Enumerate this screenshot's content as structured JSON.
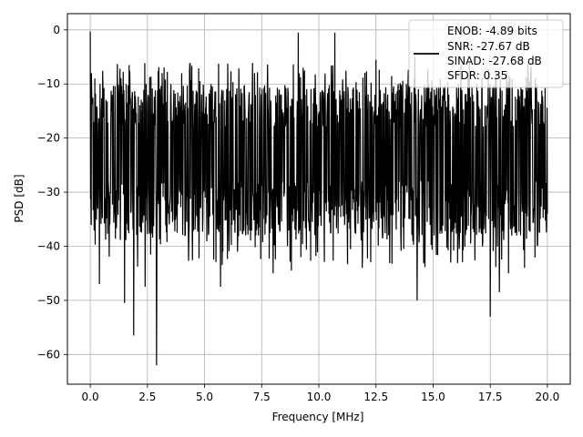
{
  "chart_data": {
    "type": "line",
    "title": "",
    "xlabel": "Frequency [MHz]",
    "ylabel": "PSD [dB]",
    "xlim": [
      -1.0,
      21.0
    ],
    "ylim": [
      -65.5,
      3.0
    ],
    "xticks": [
      0.0,
      2.5,
      5.0,
      7.5,
      10.0,
      12.5,
      15.0,
      17.5,
      20.0
    ],
    "xtick_labels": [
      "0.0",
      "2.5",
      "5.0",
      "7.5",
      "10.0",
      "12.5",
      "15.0",
      "17.5",
      "20.0"
    ],
    "yticks": [
      0,
      -10,
      -20,
      -30,
      -40,
      -50,
      -60
    ],
    "ytick_labels": [
      "0",
      "−10",
      "−20",
      "−30",
      "−40",
      "−50",
      "−60"
    ],
    "grid": true,
    "legend_position": "top-right",
    "series": [
      {
        "name": "ENOB: -4.89 bits\nSNR: -27.67 dB\nSINAD: -27.68 dB\nSFDR: 0.35",
        "legend_lines": [
          "ENOB: -4.89 bits",
          "SNR: -27.67 dB",
          "SINAD: -27.68 dB",
          "SFDR: 0.35"
        ],
        "color": "#000000",
        "x_range": [
          0.0,
          20.0
        ],
        "approx_mean": -23,
        "approx_band": [
          -38,
          -10
        ],
        "peaks": [
          {
            "x": 0.0,
            "y": -0.3
          },
          {
            "x": 0.05,
            "y": -8
          },
          {
            "x": 1.7,
            "y": -6.5
          },
          {
            "x": 4.0,
            "y": -8
          },
          {
            "x": 9.1,
            "y": -0.5
          },
          {
            "x": 10.7,
            "y": -0.5
          },
          {
            "x": 12.5,
            "y": -5.5
          },
          {
            "x": 14.2,
            "y": -5
          },
          {
            "x": 17.9,
            "y": -5.5
          }
        ],
        "troughs": [
          {
            "x": 0.4,
            "y": -47
          },
          {
            "x": 1.5,
            "y": -50.5
          },
          {
            "x": 1.9,
            "y": -56.5
          },
          {
            "x": 2.4,
            "y": -47.5
          },
          {
            "x": 2.9,
            "y": -62
          },
          {
            "x": 5.7,
            "y": -47.5
          },
          {
            "x": 8.0,
            "y": -45
          },
          {
            "x": 8.8,
            "y": -44.5
          },
          {
            "x": 11.9,
            "y": -44
          },
          {
            "x": 14.3,
            "y": -50
          },
          {
            "x": 17.5,
            "y": -53
          },
          {
            "x": 17.9,
            "y": -48.5
          },
          {
            "x": 18.3,
            "y": -45
          },
          {
            "x": 19.0,
            "y": -44
          }
        ]
      }
    ]
  }
}
